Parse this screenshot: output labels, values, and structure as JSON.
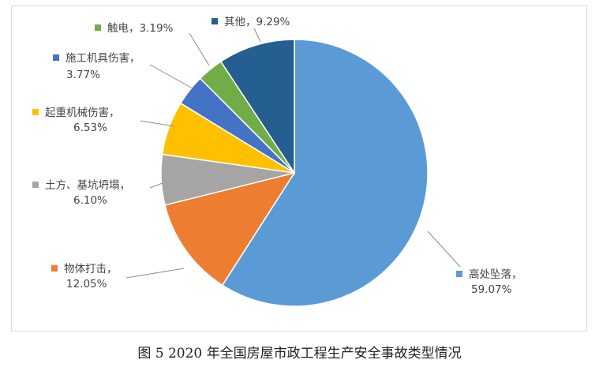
{
  "caption": "图 5  2020 年全国房屋市政工程生产安全事故类型情况",
  "chart_data": {
    "type": "pie",
    "title": "",
    "start": "12 o'clock",
    "direction": "clockwise",
    "slices": [
      {
        "name": "高处坠落",
        "value": 59.07,
        "value_label": "59.07%",
        "color": "#5b9bd5"
      },
      {
        "name": "物体打击",
        "value": 12.05,
        "value_label": "12.05%",
        "color": "#ed7d31"
      },
      {
        "name": "土方、基坑坍塌",
        "value": 6.1,
        "value_label": "6.10%",
        "color": "#a5a5a5"
      },
      {
        "name": "起重机械伤害",
        "value": 6.53,
        "value_label": "6.53%",
        "color": "#ffc000"
      },
      {
        "name": "施工机具伤害",
        "value": 3.77,
        "value_label": "3.77%",
        "color": "#4472c4"
      },
      {
        "name": "触电",
        "value": 3.19,
        "value_label": "3.19%",
        "color": "#70ad47"
      },
      {
        "name": "其他",
        "value": 9.29,
        "value_label": "9.29%",
        "color": "#255e91"
      }
    ]
  }
}
